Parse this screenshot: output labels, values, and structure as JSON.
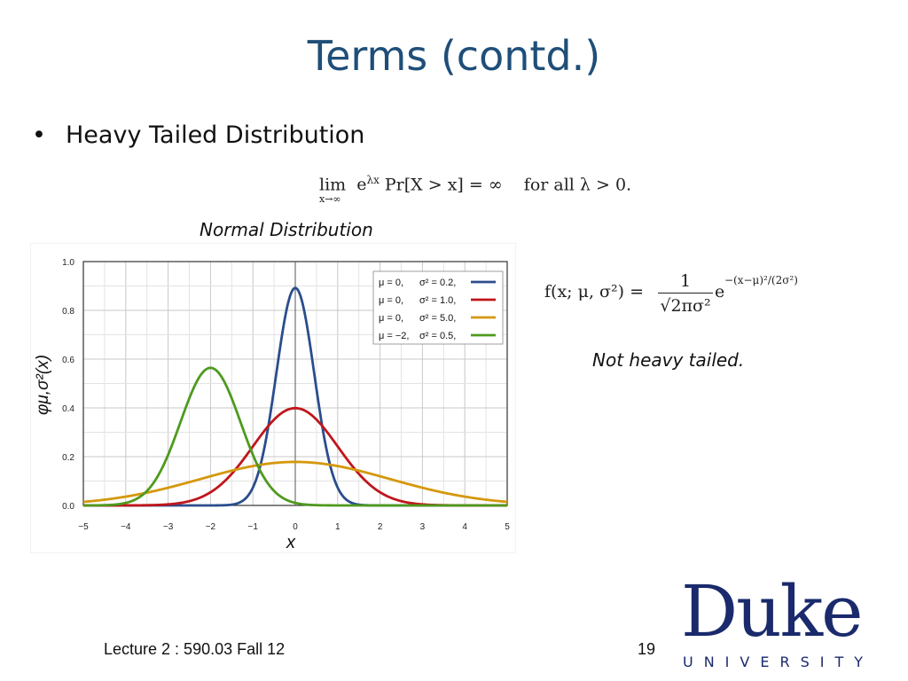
{
  "slide": {
    "title": "Terms (contd.)",
    "bullet": "Heavy Tailed Distribution",
    "bullet_symbol": "•",
    "formula_heavy": {
      "lim": "lim",
      "lim_sub": "x→∞",
      "body": "e",
      "exp": "λx",
      "rest": " Pr[X > x] = ∞    for all λ > 0."
    },
    "chart_caption": "Normal Distribution",
    "formula_normal": {
      "lhs": "f(x; μ, σ²) =",
      "numerator": "1",
      "denominator": "√2πσ²",
      "e": "e",
      "exp": "−(x−μ)²/(2σ²)"
    },
    "note": "Not heavy tailed.",
    "footer_left": "Lecture 2 : 590.03 Fall 12",
    "page_number": "19",
    "logo": {
      "word": "Duke",
      "sub": "UNIVERSITY",
      "color": "#1a2a6c"
    }
  },
  "chart_data": {
    "type": "line",
    "xlabel": "x",
    "ylabel": "φμ,σ²(x)",
    "xlim": [
      -5,
      5
    ],
    "ylim": [
      0,
      1.0
    ],
    "x_ticks": [
      "−5",
      "−4",
      "−3",
      "−2",
      "−1",
      "0",
      "1",
      "2",
      "3",
      "4",
      "5"
    ],
    "y_ticks": [
      "0.0",
      "0.2",
      "0.4",
      "0.6",
      "0.8",
      "1.0"
    ],
    "grid": true,
    "legend_position": "top-right",
    "series": [
      {
        "name": "μ = 0,   σ² = 0.2,",
        "mu_label": "μ = 0,",
        "sigma_label": "σ² = 0.2,",
        "mu": 0,
        "variance": 0.2,
        "color": "#2b4d8c"
      },
      {
        "name": "μ = 0,   σ² = 1.0,",
        "mu_label": "μ = 0,",
        "sigma_label": "σ² = 1.0,",
        "mu": 0,
        "variance": 1.0,
        "color": "#c0161b"
      },
      {
        "name": "μ = 0,   σ² = 5.0,",
        "mu_label": "μ = 0,",
        "sigma_label": "σ² = 5.0,",
        "mu": 0,
        "variance": 5.0,
        "color": "#d4980b"
      },
      {
        "name": "μ = −2,  σ² = 0.5,",
        "mu_label": "μ = −2,",
        "sigma_label": "σ² = 0.5,",
        "mu": -2,
        "variance": 0.5,
        "color": "#4e9a1e"
      }
    ]
  }
}
